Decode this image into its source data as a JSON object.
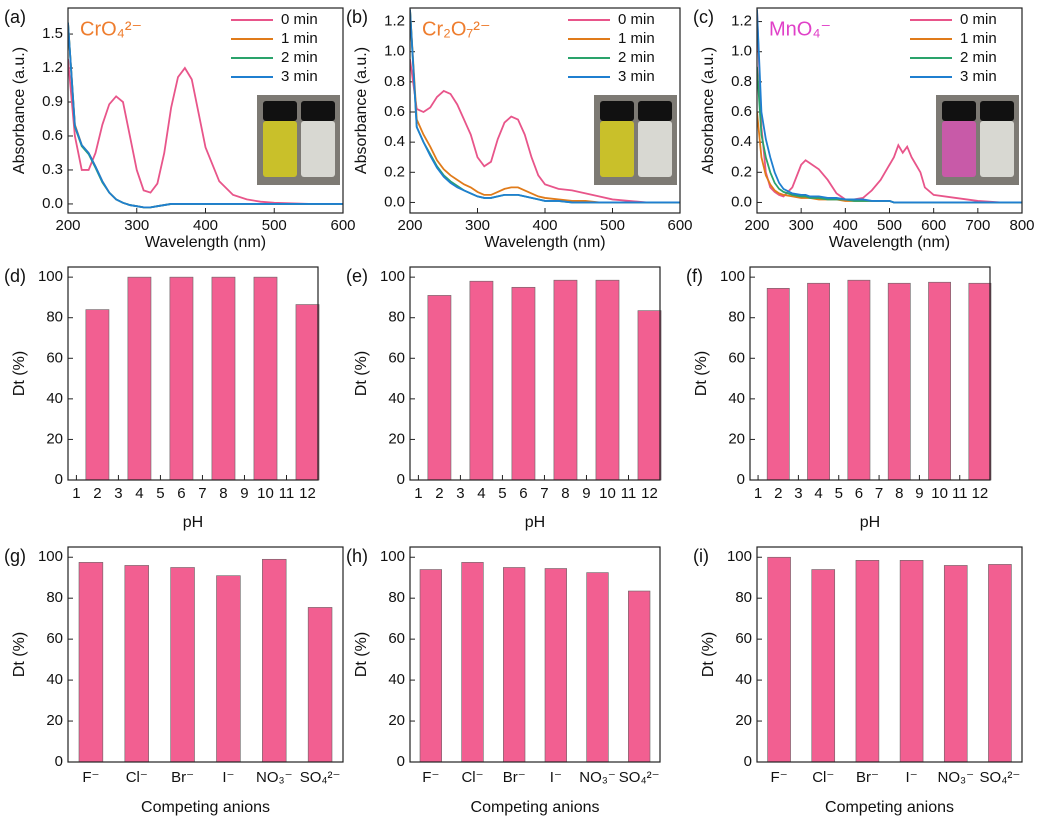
{
  "chart_data": [
    {
      "type": "line",
      "panel_label": "(a)",
      "annotation": "CrO₄²⁻",
      "annotation_color": "#ee7d2e",
      "xlabel": "Wavelength (nm)",
      "ylabel": "Absorbance (a.u.)",
      "x": [
        200,
        210,
        220,
        230,
        240,
        250,
        260,
        270,
        280,
        290,
        300,
        310,
        320,
        330,
        340,
        350,
        360,
        370,
        380,
        390,
        400,
        420,
        440,
        460,
        480,
        500,
        550,
        600
      ],
      "series": [
        {
          "name": "0 min",
          "color": "#e8558a",
          "values": [
            1.28,
            0.6,
            0.3,
            0.3,
            0.45,
            0.7,
            0.88,
            0.95,
            0.9,
            0.6,
            0.3,
            0.12,
            0.1,
            0.18,
            0.45,
            0.85,
            1.12,
            1.2,
            1.1,
            0.8,
            0.5,
            0.2,
            0.08,
            0.04,
            0.02,
            0.01,
            0,
            0
          ]
        },
        {
          "name": "1 min",
          "color": "#e07b1a",
          "values": [
            1.6,
            0.7,
            0.52,
            0.45,
            0.33,
            0.2,
            0.1,
            0.04,
            0.01,
            -0.01,
            -0.02,
            -0.03,
            -0.03,
            -0.02,
            -0.01,
            0,
            0,
            0,
            0,
            0,
            0,
            0,
            0,
            0,
            0,
            0,
            0,
            0
          ]
        },
        {
          "name": "2 min",
          "color": "#2aa36b",
          "values": [
            1.6,
            0.68,
            0.51,
            0.44,
            0.32,
            0.19,
            0.1,
            0.04,
            0.01,
            -0.01,
            -0.02,
            -0.03,
            -0.03,
            -0.02,
            -0.01,
            0,
            0,
            0,
            0,
            0,
            0,
            0,
            0,
            0,
            0,
            0,
            0,
            0
          ]
        },
        {
          "name": "3 min",
          "color": "#1f7fd0",
          "values": [
            1.6,
            0.69,
            0.52,
            0.45,
            0.33,
            0.2,
            0.1,
            0.04,
            0.01,
            -0.01,
            -0.02,
            -0.03,
            -0.03,
            -0.02,
            -0.01,
            0,
            0,
            0,
            0,
            0,
            0,
            0,
            0,
            0,
            0,
            0,
            0,
            0
          ]
        }
      ],
      "xlim": [
        200,
        600
      ],
      "xticks": [
        200,
        300,
        400,
        500,
        600
      ],
      "ylim": [
        -0.08,
        1.73
      ],
      "yticks": [
        {
          "value": 0,
          "label": "0.0"
        },
        0.3,
        0.6,
        0.9,
        1.2,
        1.5
      ],
      "legend": "upper right"
    },
    {
      "type": "line",
      "panel_label": "(b)",
      "annotation": "Cr₂O₇²⁻",
      "annotation_color": "#ee7d2e",
      "xlabel": "Wavelength (nm)",
      "ylabel": "Absorbance (a.u.)",
      "x": [
        200,
        210,
        220,
        230,
        240,
        250,
        260,
        270,
        280,
        290,
        300,
        310,
        320,
        330,
        340,
        350,
        360,
        370,
        380,
        390,
        400,
        420,
        440,
        460,
        480,
        500,
        550,
        600
      ],
      "series": [
        {
          "name": "0 min",
          "color": "#e8558a",
          "values": [
            0.95,
            0.62,
            0.6,
            0.63,
            0.7,
            0.74,
            0.72,
            0.65,
            0.55,
            0.45,
            0.3,
            0.24,
            0.27,
            0.42,
            0.53,
            0.57,
            0.55,
            0.45,
            0.3,
            0.18,
            0.12,
            0.09,
            0.08,
            0.06,
            0.04,
            0.02,
            0,
            0
          ]
        },
        {
          "name": "1 min",
          "color": "#e07b1a",
          "values": [
            1.28,
            0.55,
            0.45,
            0.37,
            0.28,
            0.22,
            0.18,
            0.15,
            0.12,
            0.1,
            0.07,
            0.05,
            0.05,
            0.07,
            0.09,
            0.1,
            0.1,
            0.08,
            0.06,
            0.04,
            0.03,
            0.02,
            0.01,
            0.01,
            0,
            0,
            0,
            0
          ]
        },
        {
          "name": "2 min",
          "color": "#2aa36b",
          "values": [
            1.28,
            0.5,
            0.4,
            0.32,
            0.24,
            0.18,
            0.14,
            0.11,
            0.08,
            0.06,
            0.04,
            0.03,
            0.03,
            0.04,
            0.05,
            0.05,
            0.05,
            0.04,
            0.03,
            0.02,
            0.01,
            0.01,
            0,
            0,
            0,
            0,
            0,
            0
          ]
        },
        {
          "name": "3 min",
          "color": "#1f7fd0",
          "values": [
            1.28,
            0.5,
            0.4,
            0.31,
            0.23,
            0.17,
            0.13,
            0.1,
            0.08,
            0.06,
            0.04,
            0.03,
            0.03,
            0.04,
            0.05,
            0.05,
            0.05,
            0.04,
            0.03,
            0.02,
            0.01,
            0.01,
            0,
            0,
            0,
            0,
            0,
            0
          ]
        }
      ],
      "xlim": [
        200,
        600
      ],
      "xticks": [
        200,
        300,
        400,
        500,
        600
      ],
      "ylim": [
        -0.07,
        1.29
      ],
      "yticks": [
        {
          "value": 0,
          "label": "0.0"
        },
        0.2,
        0.4,
        0.6,
        0.8,
        {
          "value": 1,
          "label": "1.0"
        },
        1.2
      ],
      "legend": "upper right"
    },
    {
      "type": "line",
      "panel_label": "(c)",
      "annotation": "MnO₄⁻",
      "annotation_color": "#e040c8",
      "xlabel": "Wavelength (nm)",
      "ylabel": "Absorbance (a.u.)",
      "x": [
        200,
        210,
        220,
        230,
        240,
        250,
        260,
        280,
        300,
        310,
        320,
        340,
        360,
        380,
        400,
        420,
        440,
        460,
        480,
        500,
        510,
        520,
        530,
        540,
        550,
        560,
        570,
        580,
        600,
        650,
        700,
        750,
        800
      ],
      "series": [
        {
          "name": "0 min",
          "color": "#e8558a",
          "values": [
            1.28,
            0.5,
            0.2,
            0.1,
            0.07,
            0.05,
            0.04,
            0.1,
            0.25,
            0.28,
            0.26,
            0.22,
            0.15,
            0.06,
            0.02,
            0.02,
            0.03,
            0.08,
            0.15,
            0.25,
            0.3,
            0.38,
            0.33,
            0.37,
            0.3,
            0.25,
            0.2,
            0.1,
            0.05,
            0.03,
            0.01,
            0,
            0
          ]
        },
        {
          "name": "1 min",
          "color": "#e07b1a",
          "values": [
            0.6,
            0.3,
            0.18,
            0.12,
            0.08,
            0.06,
            0.05,
            0.04,
            0.03,
            0.03,
            0.03,
            0.02,
            0.02,
            0.02,
            0.01,
            0.01,
            0.01,
            0.01,
            0.01,
            0.01,
            0,
            0,
            0,
            0,
            0,
            0,
            0,
            0,
            0,
            0,
            0,
            0,
            0
          ]
        },
        {
          "name": "2 min",
          "color": "#2aa36b",
          "values": [
            0.9,
            0.45,
            0.3,
            0.2,
            0.13,
            0.09,
            0.07,
            0.05,
            0.04,
            0.04,
            0.03,
            0.03,
            0.02,
            0.02,
            0.02,
            0.01,
            0.01,
            0.01,
            0.01,
            0.01,
            0,
            0,
            0,
            0,
            0,
            0,
            0,
            0,
            0,
            0,
            0,
            0,
            0
          ]
        },
        {
          "name": "3 min",
          "color": "#1f7fd0",
          "values": [
            1.28,
            0.6,
            0.42,
            0.3,
            0.2,
            0.13,
            0.09,
            0.06,
            0.05,
            0.05,
            0.04,
            0.04,
            0.03,
            0.03,
            0.02,
            0.02,
            0.02,
            0.01,
            0.01,
            0.01,
            0,
            0,
            0,
            0,
            0,
            0,
            0,
            0,
            0,
            0,
            0,
            0,
            0
          ]
        }
      ],
      "xlim": [
        200,
        800
      ],
      "xticks": [
        200,
        300,
        400,
        500,
        600,
        700,
        800
      ],
      "ylim": [
        -0.07,
        1.29
      ],
      "yticks": [
        {
          "value": 0,
          "label": "0.0"
        },
        0.2,
        0.4,
        0.6,
        0.8,
        {
          "value": 1,
          "label": "1.0"
        },
        1.2
      ],
      "legend": "upper right"
    },
    {
      "type": "bar",
      "panel_label": "(d)",
      "xlabel": "pH",
      "ylabel": "Dt (%)",
      "color": "#f25f91",
      "x": [
        2,
        4,
        6,
        8,
        10,
        12
      ],
      "values": [
        84,
        100,
        100,
        100,
        100,
        86.5
      ],
      "xlim": [
        0.6,
        12.5
      ],
      "xticks": [
        1,
        2,
        3,
        4,
        5,
        6,
        7,
        8,
        9,
        10,
        11,
        12
      ],
      "ylim": [
        0,
        105
      ],
      "yticks": [
        0,
        20,
        40,
        60,
        80,
        100
      ]
    },
    {
      "type": "bar",
      "panel_label": "(e)",
      "xlabel": "pH",
      "ylabel": "Dt (%)",
      "color": "#f25f91",
      "x": [
        2,
        4,
        6,
        8,
        10,
        12
      ],
      "values": [
        91,
        98,
        95,
        98.5,
        98.5,
        83.5
      ],
      "xlim": [
        0.6,
        12.5
      ],
      "xticks": [
        1,
        2,
        3,
        4,
        5,
        6,
        7,
        8,
        9,
        10,
        11,
        12
      ],
      "ylim": [
        0,
        105
      ],
      "yticks": [
        0,
        20,
        40,
        60,
        80,
        100
      ]
    },
    {
      "type": "bar",
      "panel_label": "(f)",
      "xlabel": "pH",
      "ylabel": "Dt (%)",
      "color": "#f25f91",
      "x": [
        2,
        4,
        6,
        8,
        10,
        12
      ],
      "values": [
        94.5,
        97,
        98.5,
        97,
        97.5,
        97
      ],
      "xlim": [
        0.6,
        12.5
      ],
      "xticks": [
        1,
        2,
        3,
        4,
        5,
        6,
        7,
        8,
        9,
        10,
        11,
        12
      ],
      "ylim": [
        0,
        105
      ],
      "yticks": [
        0,
        20,
        40,
        60,
        80,
        100
      ]
    },
    {
      "type": "bar",
      "panel_label": "(g)",
      "xlabel": "Competing anions",
      "ylabel": "Dt (%)",
      "color": "#f25f91",
      "categories": [
        "F⁻",
        "Cl⁻",
        "Br⁻",
        "I⁻",
        "NO₃⁻",
        "SO₄²⁻"
      ],
      "values": [
        97.5,
        96,
        95,
        91,
        99,
        75.5
      ],
      "ylim": [
        0,
        105
      ],
      "yticks": [
        0,
        20,
        40,
        60,
        80,
        100
      ]
    },
    {
      "type": "bar",
      "panel_label": "(h)",
      "xlabel": "Competing anions",
      "ylabel": "Dt (%)",
      "color": "#f25f91",
      "categories": [
        "F⁻",
        "Cl⁻",
        "Br⁻",
        "I⁻",
        "NO₃⁻",
        "SO₄²⁻"
      ],
      "values": [
        94,
        97.5,
        95,
        94.5,
        92.5,
        83.5
      ],
      "ylim": [
        0,
        105
      ],
      "yticks": [
        0,
        20,
        40,
        60,
        80,
        100
      ]
    },
    {
      "type": "bar",
      "panel_label": "(i)",
      "xlabel": "Competing anions",
      "ylabel": "Dt (%)",
      "color": "#f25f91",
      "categories": [
        "F⁻",
        "Cl⁻",
        "Br⁻",
        "I⁻",
        "NO₃⁻",
        "SO₄²⁻"
      ],
      "values": [
        100,
        94,
        98.5,
        98.5,
        96,
        96.5
      ],
      "ylim": [
        0,
        105
      ],
      "yticks": [
        0,
        20,
        40,
        60,
        80,
        100
      ]
    }
  ]
}
